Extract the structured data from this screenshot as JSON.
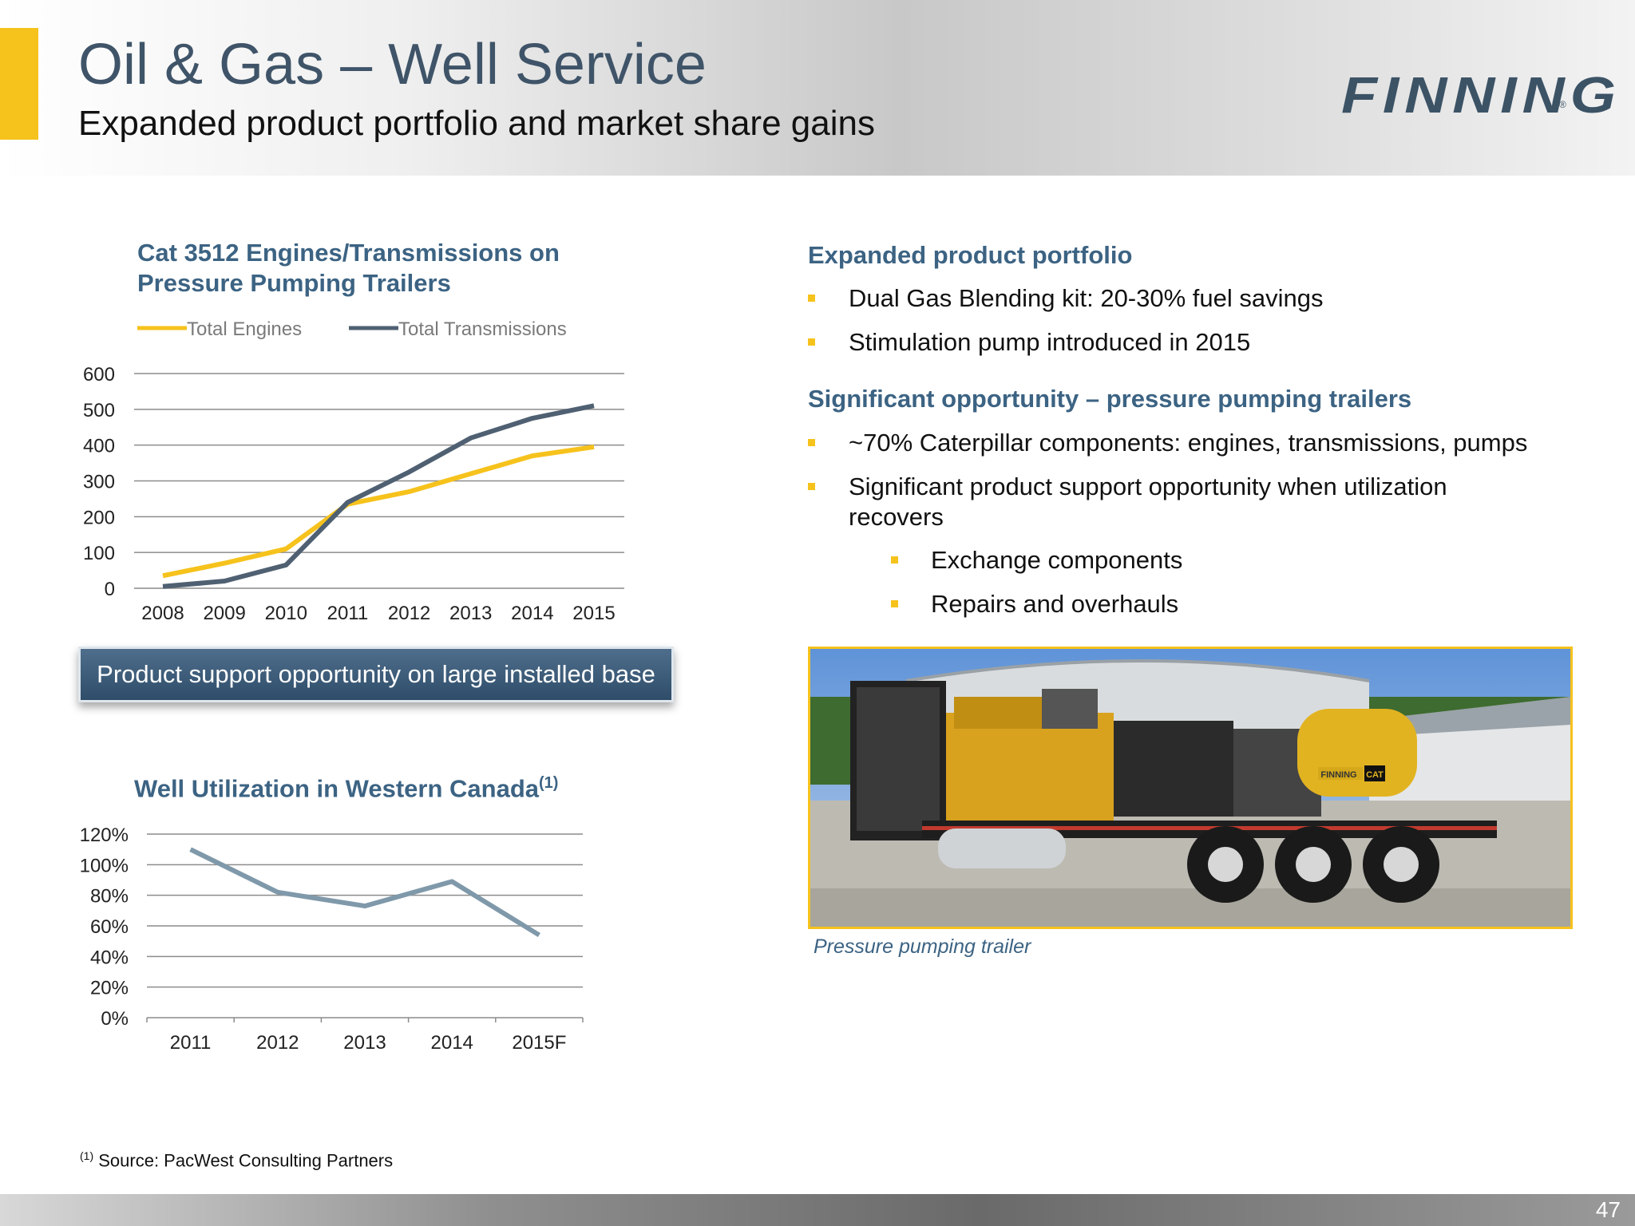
{
  "header": {
    "title": "Oil & Gas – Well Service",
    "subtitle": "Expanded product portfolio and market share gains",
    "logo_text": "FINNING",
    "logo_mark": "®",
    "accent_color": "#F6C21C",
    "title_color": "#3F5468"
  },
  "chart_data": [
    {
      "type": "line",
      "title": "Cat 3512 Engines/Transmissions on Pressure Pumping Trailers",
      "title_lines": [
        "Cat 3512 Engines/Transmissions on",
        "Pressure Pumping Trailers"
      ],
      "x": [
        "2008",
        "2009",
        "2010",
        "2011",
        "2012",
        "2013",
        "2014",
        "2015"
      ],
      "y_ticks": [
        "0",
        "100",
        "200",
        "300",
        "400",
        "500",
        "600"
      ],
      "ylim": [
        0,
        600
      ],
      "grid": true,
      "legend_position": "top",
      "series": [
        {
          "name": "Total Engines",
          "color": "#F6C21C",
          "values": [
            35,
            70,
            110,
            235,
            270,
            320,
            370,
            395
          ]
        },
        {
          "name": "Total Transmissions",
          "color": "#4F6072",
          "values": [
            5,
            20,
            65,
            240,
            325,
            420,
            475,
            510
          ]
        }
      ]
    },
    {
      "type": "line",
      "title": "Well Utilization in Western Canada",
      "title_sup": "(1)",
      "x": [
        "2011",
        "2012",
        "2013",
        "2014",
        "2015F"
      ],
      "y_ticks": [
        "0%",
        "20%",
        "40%",
        "60%",
        "80%",
        "100%",
        "120%"
      ],
      "ylim": [
        0,
        120
      ],
      "grid": true,
      "series": [
        {
          "color": "#7F99AA",
          "values": [
            110,
            82,
            73,
            89,
            54
          ]
        }
      ]
    }
  ],
  "callout": {
    "text": "Product support opportunity on large installed base"
  },
  "right": {
    "section1": {
      "heading": "Expanded product portfolio",
      "bullets": [
        "Dual Gas Blending kit: 20-30% fuel savings",
        "Stimulation pump introduced in 2015"
      ]
    },
    "section2": {
      "heading": "Significant opportunity – pressure pumping trailers",
      "bullets": [
        "~70% Caterpillar components: engines, transmissions, pumps",
        "Significant product support opportunity when utilization",
        "recovers"
      ],
      "sub_bullets": [
        "Exchange components",
        "Repairs and overhauls"
      ]
    },
    "photo": {
      "caption": "Pressure pumping trailer",
      "tank_logo": "FINNING",
      "tank_badge": "CAT"
    }
  },
  "footnote": {
    "sup": "(1)",
    "text": " Source: PacWest Consulting Partners"
  },
  "page_number": "47"
}
